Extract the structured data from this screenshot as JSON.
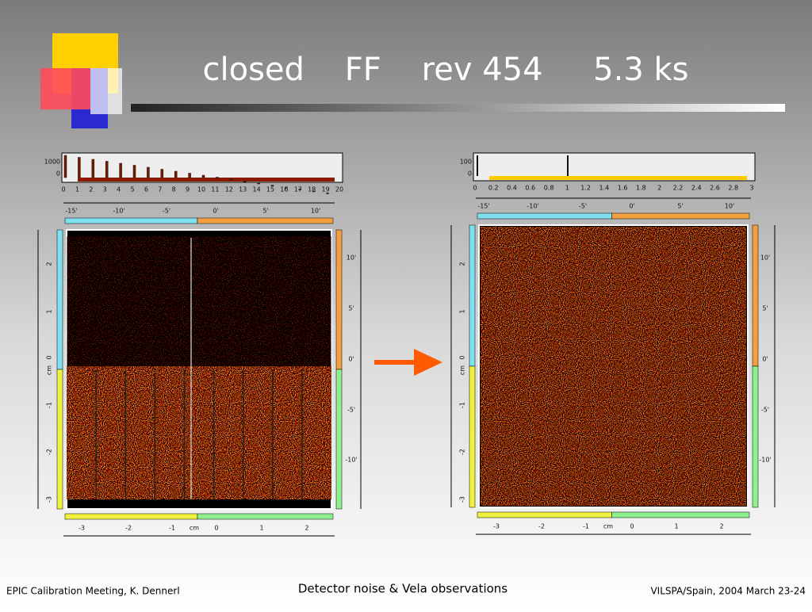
{
  "header": {
    "title": "closed    FF    rev 454     5.3 ks"
  },
  "panels": [
    {
      "hist_yticks": [
        "1000",
        "0"
      ],
      "hist_ticks": [
        "0",
        "1",
        "2",
        "3",
        "4",
        "5",
        "6",
        "7",
        "8",
        "9",
        "10",
        "11",
        "12",
        "13",
        "14",
        "15",
        "16",
        "17",
        "18",
        "19",
        "20"
      ],
      "top_axis": [
        "-15'",
        "-10'",
        "-5'",
        "0'",
        "5'",
        "10'"
      ],
      "left_axis": [
        "2",
        "1",
        "0",
        "cm",
        "-1",
        "-2",
        "-3"
      ],
      "right_axis": [
        "10'",
        "5'",
        "0'",
        "-5'",
        "-10'"
      ],
      "bottom_axis": [
        "-3",
        "-2",
        "-1",
        "cm",
        "0",
        "1",
        "2"
      ]
    },
    {
      "hist_yticks": [
        "100",
        "0"
      ],
      "hist_ticks": [
        "0",
        "0.2",
        "0.4",
        "0.6",
        "0.8",
        "1",
        "1.2",
        "1.4",
        "1.6",
        "1.8",
        "2",
        "2.2",
        "2.4",
        "2.6",
        "2.8",
        "3"
      ],
      "top_axis": [
        "-15'",
        "-10'",
        "-5'",
        "0'",
        "5'",
        "10'"
      ],
      "left_axis": [
        "2",
        "1",
        "0",
        "cm",
        "-1",
        "-2",
        "-3"
      ],
      "right_axis": [
        "10'",
        "5'",
        "0'",
        "-5'",
        "-10'"
      ],
      "bottom_axis": [
        "-3",
        "-2",
        "-1",
        "cm",
        "0",
        "1",
        "2"
      ]
    }
  ],
  "footer": {
    "left": "EPIC Calibration Meeting, K. Dennerl",
    "center": "Detector noise & Vela observations",
    "right": "VILSPA/Spain, 2004 March 23-24"
  }
}
